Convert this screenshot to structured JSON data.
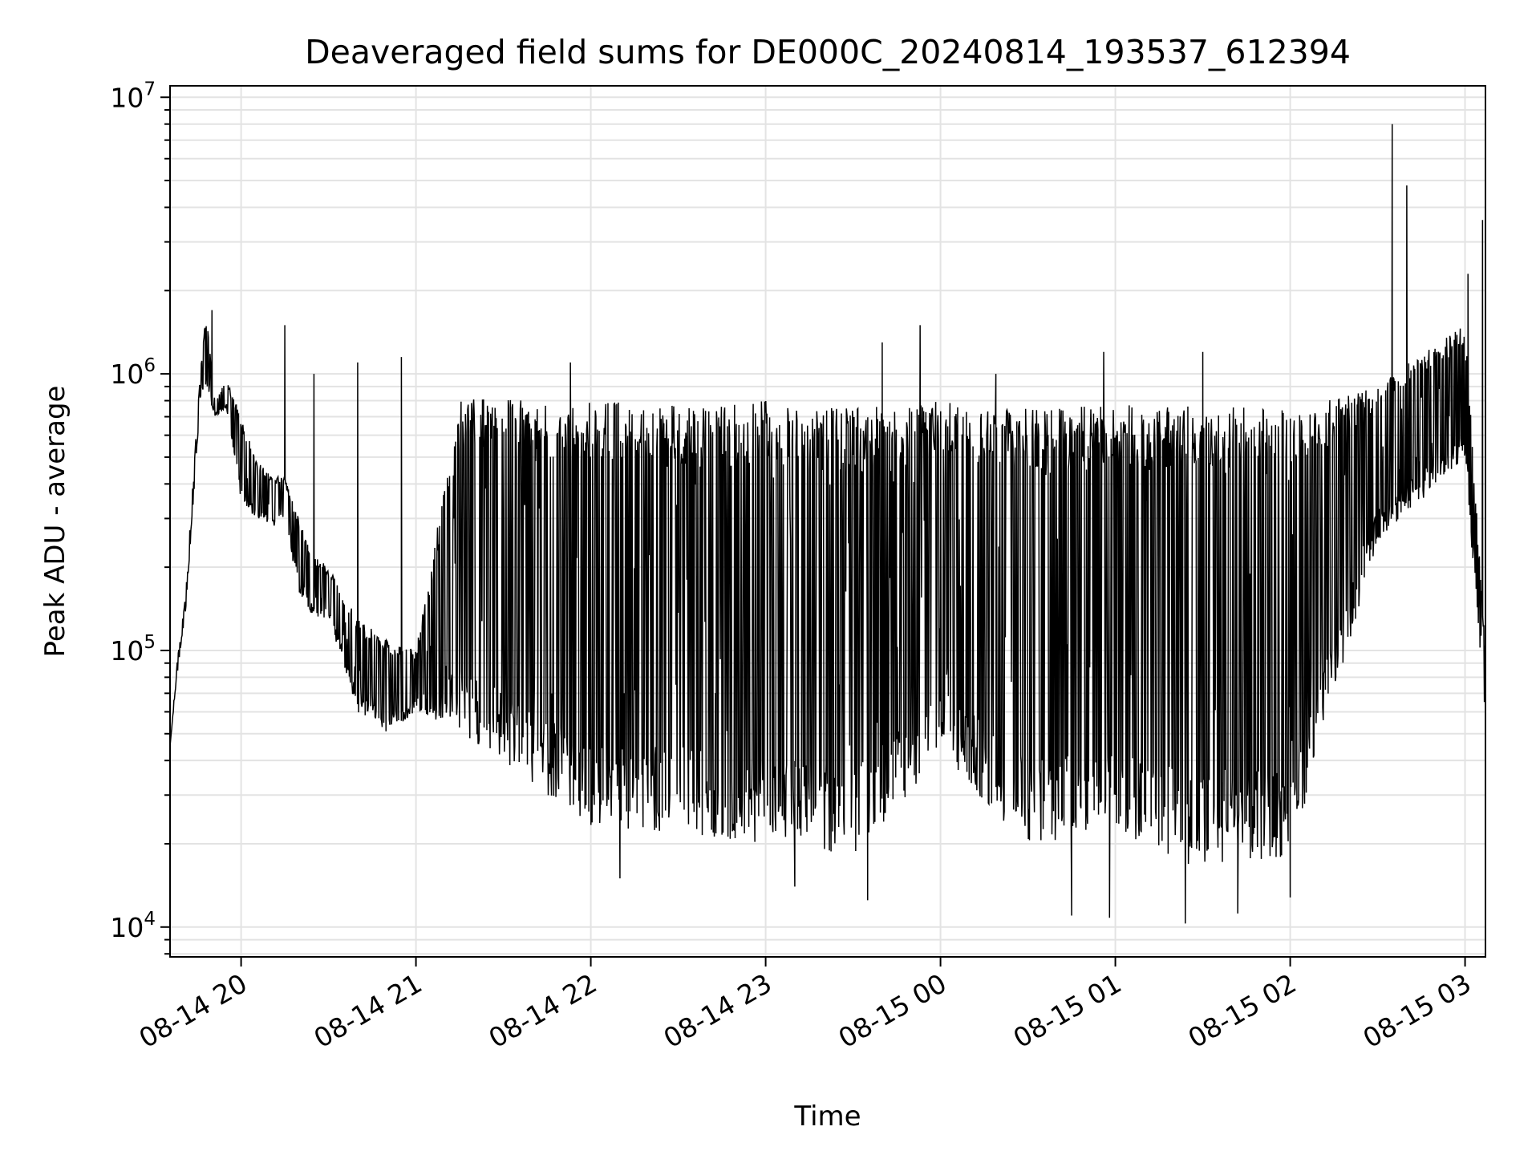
{
  "chart_data": {
    "type": "line",
    "title": "Deaveraged field sums for DE000C_20240814_193537_612394",
    "xlabel": "Time",
    "ylabel": "Peak ADU - average",
    "y_scale": "log",
    "ylim": [
      7800,
      11000000
    ],
    "xlim": [
      "2024-08-14T19:35:37",
      "2024-08-15T03:07:00"
    ],
    "x_tick_labels": [
      "08-14 20",
      "08-14 21",
      "08-14 22",
      "08-14 23",
      "08-15 00",
      "08-15 01",
      "08-15 02",
      "08-15 03"
    ],
    "x_ticks": [
      "2024-08-14T20:00",
      "2024-08-14T21:00",
      "2024-08-14T22:00",
      "2024-08-14T23:00",
      "2024-08-15T00:00",
      "2024-08-15T01:00",
      "2024-08-15T02:00",
      "2024-08-15T03:00"
    ],
    "y_ticks": [
      10000,
      100000,
      1000000,
      10000000
    ],
    "y_tick_labels": [
      {
        "base": "10",
        "exp": "4"
      },
      {
        "base": "10",
        "exp": "5"
      },
      {
        "base": "10",
        "exp": "6"
      },
      {
        "base": "10",
        "exp": "7"
      }
    ],
    "grid": true,
    "line_color": "#000000",
    "series": [
      {
        "envelope_upper": [
          [
            "2024-08-14T19:35:37",
            45000
          ],
          [
            "2024-08-14T19:38",
            90000
          ],
          [
            "2024-08-14T19:41",
            160000
          ],
          [
            "2024-08-14T19:43",
            350000
          ],
          [
            "2024-08-14T19:46",
            1000000
          ],
          [
            "2024-08-14T19:48",
            1700000
          ],
          [
            "2024-08-14T19:51",
            800000
          ],
          [
            "2024-08-14T19:55",
            950000
          ],
          [
            "2024-08-14T20:00",
            700000
          ],
          [
            "2024-08-14T20:05",
            500000
          ],
          [
            "2024-08-14T20:10",
            430000
          ],
          [
            "2024-08-14T20:15",
            420000
          ],
          [
            "2024-08-14T20:20",
            300000
          ],
          [
            "2024-08-14T20:25",
            220000
          ],
          [
            "2024-08-14T20:30",
            200000
          ],
          [
            "2024-08-14T20:40",
            130000
          ],
          [
            "2024-08-14T20:50",
            110000
          ],
          [
            "2024-08-14T21:00",
            100000
          ],
          [
            "2024-08-14T21:15",
            800000
          ],
          [
            "2024-08-14T21:30",
            850000
          ],
          [
            "2024-08-14T21:45",
            800000
          ],
          [
            "2024-08-14T22:00",
            800000
          ],
          [
            "2024-08-14T22:30",
            780000
          ],
          [
            "2024-08-14T23:00",
            800000
          ],
          [
            "2024-08-14T23:30",
            750000
          ],
          [
            "2024-08-15T00:00",
            800000
          ],
          [
            "2024-08-15T00:30",
            750000
          ],
          [
            "2024-08-15T01:00",
            780000
          ],
          [
            "2024-08-15T01:30",
            760000
          ],
          [
            "2024-08-15T02:00",
            760000
          ],
          [
            "2024-08-15T02:30",
            900000
          ],
          [
            "2024-08-15T02:45",
            1200000
          ],
          [
            "2024-08-15T03:00",
            1500000
          ],
          [
            "2024-08-15T03:07",
            100000
          ]
        ],
        "envelope_lower": [
          [
            "2024-08-14T19:35:37",
            45000
          ],
          [
            "2024-08-14T19:38",
            80000
          ],
          [
            "2024-08-14T19:41",
            140000
          ],
          [
            "2024-08-14T19:43",
            280000
          ],
          [
            "2024-08-14T19:46",
            800000
          ],
          [
            "2024-08-14T19:48",
            900000
          ],
          [
            "2024-08-14T19:51",
            700000
          ],
          [
            "2024-08-14T19:55",
            750000
          ],
          [
            "2024-08-14T20:00",
            350000
          ],
          [
            "2024-08-14T20:05",
            300000
          ],
          [
            "2024-08-14T20:10",
            280000
          ],
          [
            "2024-08-14T20:15",
            290000
          ],
          [
            "2024-08-14T20:20",
            160000
          ],
          [
            "2024-08-14T20:25",
            130000
          ],
          [
            "2024-08-14T20:30",
            130000
          ],
          [
            "2024-08-14T20:40",
            60000
          ],
          [
            "2024-08-14T20:50",
            50000
          ],
          [
            "2024-08-14T21:00",
            60000
          ],
          [
            "2024-08-14T21:15",
            50000
          ],
          [
            "2024-08-14T21:30",
            40000
          ],
          [
            "2024-08-14T21:45",
            30000
          ],
          [
            "2024-08-14T22:00",
            23000
          ],
          [
            "2024-08-14T22:30",
            22000
          ],
          [
            "2024-08-14T23:00",
            20000
          ],
          [
            "2024-08-14T23:30",
            18000
          ],
          [
            "2024-08-15T00:00",
            40000
          ],
          [
            "2024-08-15T00:30",
            20000
          ],
          [
            "2024-08-15T01:00",
            22000
          ],
          [
            "2024-08-15T01:30",
            16000
          ],
          [
            "2024-08-15T02:00",
            18000
          ],
          [
            "2024-08-15T02:30",
            250000
          ],
          [
            "2024-08-15T02:45",
            350000
          ],
          [
            "2024-08-15T03:00",
            500000
          ],
          [
            "2024-08-15T03:07",
            50000
          ]
        ],
        "spikes": [
          [
            "2024-08-14T19:50",
            1700000
          ],
          [
            "2024-08-14T20:15",
            1500000
          ],
          [
            "2024-08-14T20:25",
            1000000
          ],
          [
            "2024-08-14T20:40",
            1100000
          ],
          [
            "2024-08-14T20:55",
            1150000
          ],
          [
            "2024-08-14T21:53",
            1100000
          ],
          [
            "2024-08-14T23:40",
            1300000
          ],
          [
            "2024-08-14T23:53",
            1500000
          ],
          [
            "2024-08-15T00:19",
            1000000
          ],
          [
            "2024-08-15T00:56",
            1200000
          ],
          [
            "2024-08-15T01:30",
            1200000
          ],
          [
            "2024-08-15T02:35",
            8000000
          ],
          [
            "2024-08-15T02:40",
            4800000
          ],
          [
            "2024-08-15T03:01",
            2300000
          ],
          [
            "2024-08-15T03:06",
            3600000
          ]
        ],
        "dips": [
          [
            "2024-08-14T22:10",
            15000
          ],
          [
            "2024-08-14T23:10",
            14000
          ],
          [
            "2024-08-14T23:35",
            12500
          ],
          [
            "2024-08-15T00:45",
            11000
          ],
          [
            "2024-08-15T00:58",
            10800
          ],
          [
            "2024-08-15T01:24",
            10300
          ],
          [
            "2024-08-15T01:42",
            11200
          ],
          [
            "2024-08-15T02:00",
            12800
          ],
          [
            "2024-08-15T03:07",
            28000
          ]
        ]
      }
    ]
  }
}
